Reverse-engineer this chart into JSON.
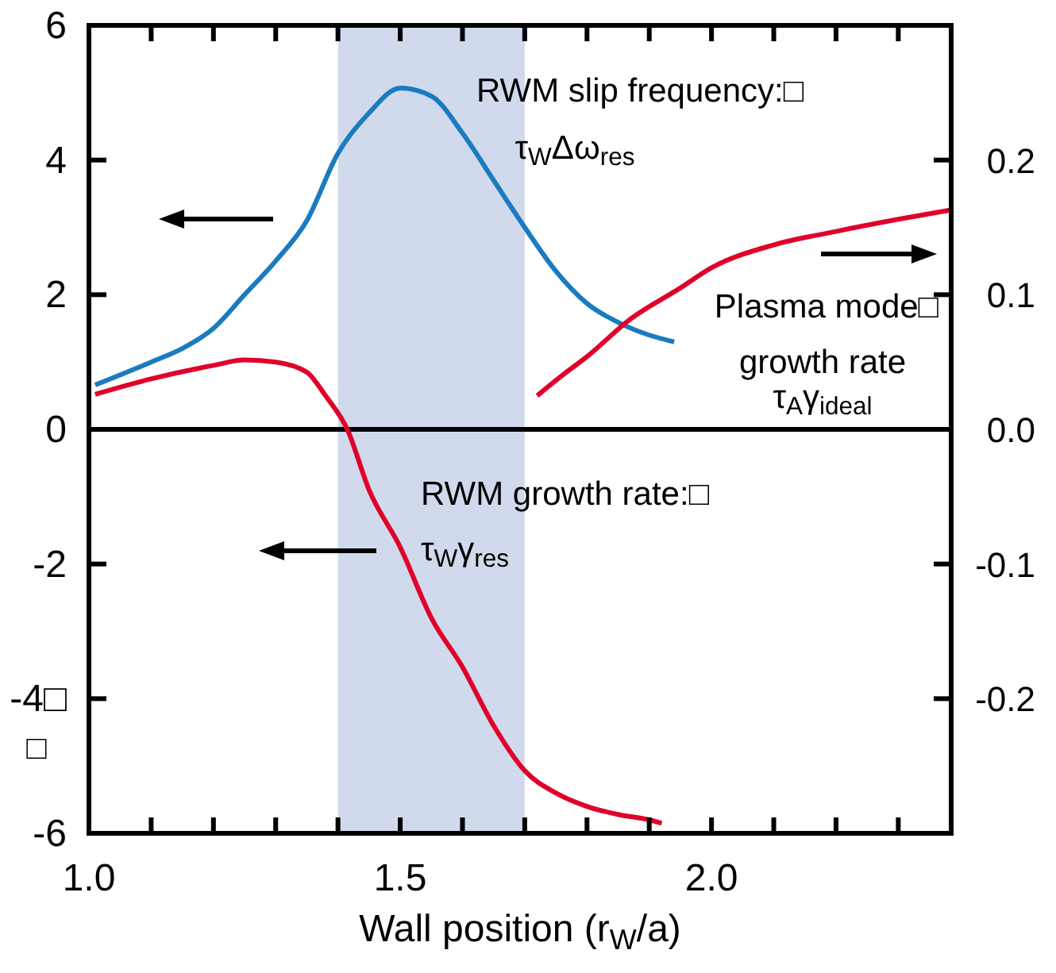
{
  "chart_data": {
    "type": "line",
    "xlabel": "Wall position (r$_{W}$/a)",
    "xlim": [
      1.0,
      2.385
    ],
    "ylim": [
      -6,
      6
    ],
    "y2lim": [
      -0.3,
      0.3
    ],
    "xticks": [
      {
        "value": 1.0,
        "label": "1.0"
      },
      {
        "value": 1.1,
        "label": null
      },
      {
        "value": 1.2,
        "label": null
      },
      {
        "value": 1.3,
        "label": null
      },
      {
        "value": 1.4,
        "label": null
      },
      1.5,
      {
        "value": 1.6,
        "label": null
      },
      {
        "value": 1.7,
        "label": null
      },
      {
        "value": 1.8,
        "label": null
      },
      {
        "value": 1.9,
        "label": null
      },
      {
        "value": 2.0,
        "label": "2.0"
      },
      {
        "value": 2.1,
        "label": null
      },
      {
        "value": 2.2,
        "label": null
      },
      {
        "value": 2.3,
        "label": null
      }
    ],
    "yticks": [
      -6,
      {
        "value": -4,
        "label": "-4□"
      },
      -2,
      0,
      2,
      4,
      6
    ],
    "y2ticks": [
      -0.2,
      -0.1,
      {
        "value": 0.0,
        "label": "0.0"
      },
      0.1,
      0.2
    ],
    "grid": false,
    "marker": "none",
    "line_style": "solid",
    "series": [
      {
        "color": "#1a7bc0",
        "x": [
          1.01,
          1.1,
          1.15,
          1.2,
          1.25,
          1.3,
          1.35,
          1.4,
          1.45,
          1.5,
          1.55,
          1.6,
          1.65,
          1.7,
          1.75,
          1.8,
          1.85,
          1.9,
          1.94
        ],
        "values": [
          0.66,
          1.0,
          1.2,
          1.5,
          2.0,
          2.5,
          3.1,
          4.1,
          4.7,
          5.07,
          4.95,
          4.4,
          3.7,
          3.0,
          2.35,
          1.87,
          1.59,
          1.4,
          1.3
        ]
      },
      {
        "color": "#e0002a",
        "x": [
          1.01,
          1.1,
          1.2,
          1.25,
          1.3,
          1.35,
          1.38,
          1.415,
          1.45,
          1.5,
          1.55,
          1.6,
          1.65,
          1.7,
          1.75,
          1.8,
          1.85,
          1.9,
          1.92
        ],
        "values": [
          0.52,
          0.75,
          0.95,
          1.03,
          1.0,
          0.85,
          0.5,
          0.0,
          -0.9,
          -1.75,
          -2.8,
          -3.53,
          -4.4,
          -5.07,
          -5.4,
          -5.6,
          -5.72,
          -5.8,
          -5.85
        ]
      },
      {
        "color": "#e0002a",
        "axis": "y2",
        "x": [
          1.72,
          1.76,
          1.8,
          1.87,
          1.95,
          2.0,
          2.1,
          2.2,
          2.3,
          2.385
        ],
        "values": [
          0.025,
          0.04,
          0.054,
          0.082,
          0.105,
          0.12,
          0.137,
          0.147,
          0.156,
          0.163
        ]
      }
    ],
    "ref_lines": [
      {
        "axis": "y",
        "value": 0,
        "color": "#000000"
      }
    ],
    "bands": [
      {
        "axis": "x",
        "from": 1.4,
        "to": 1.7,
        "color": "#d0daec"
      }
    ],
    "annotations": [
      "RWM slip frequency:□",
      "τ$_{W}$Δω$_{res}$",
      "Plasma mode□",
      "growth rate",
      "τ$_{A}$γ$_{ideal}$",
      "RWM growth rate:□",
      "τ$_{W}$γ$_{res}$",
      "□"
    ]
  }
}
